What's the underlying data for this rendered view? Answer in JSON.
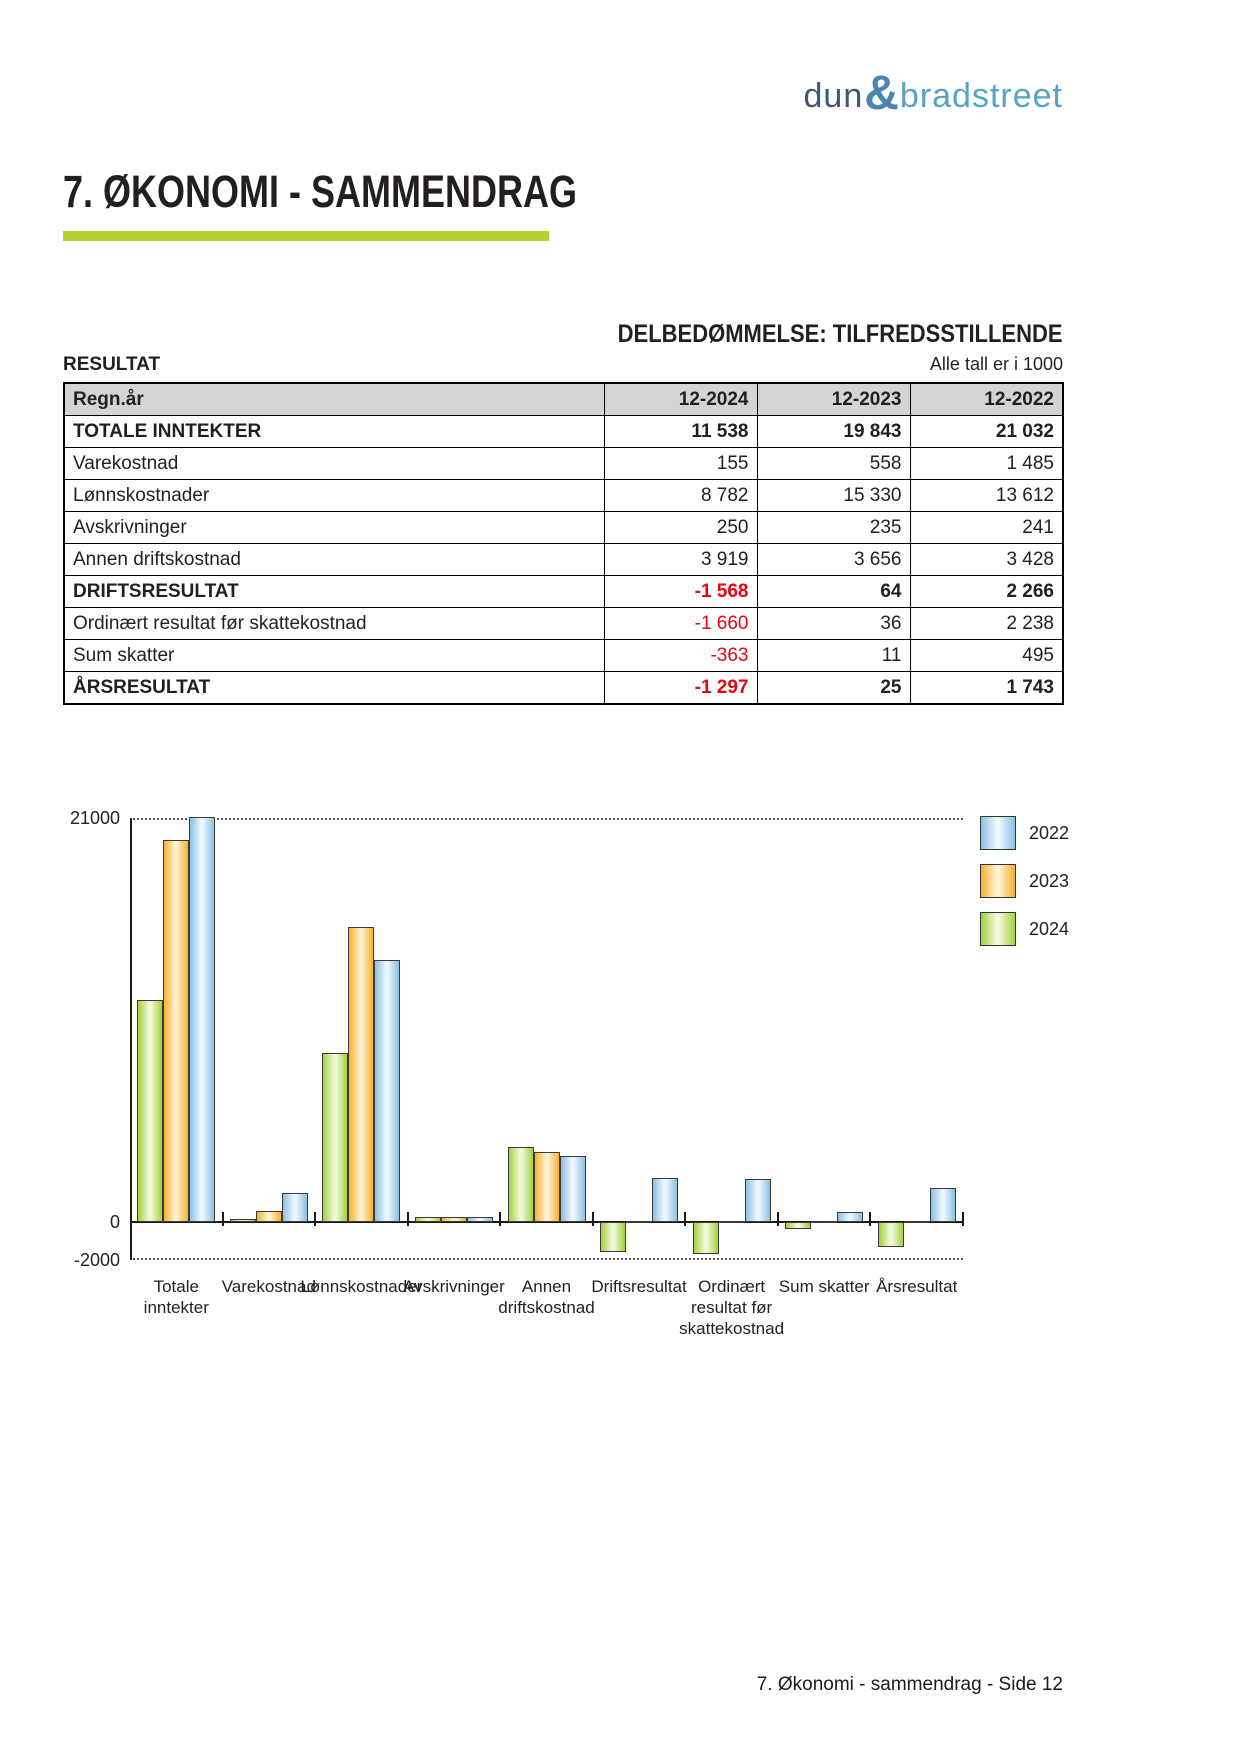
{
  "logo": {
    "part1": "dun",
    "amp": "&",
    "part2": "bradstreet",
    "color_dark": "#3b5a77",
    "color_light": "#56a3c6"
  },
  "page": {
    "title": "7. ØKONOMI - SAMMENDRAG",
    "accent_color": "#b2d234",
    "assessment": "DELBEDØMMELSE: TILFREDSSTILLENDE",
    "section_label": "RESULTAT",
    "units_note": "Alle tall er i 1000",
    "footer": "7. Økonomi - sammendrag - Side 12",
    "negative_color": "#e30613",
    "table_header_bg": "#d4d4d4"
  },
  "table": {
    "headers": [
      "Regn.år",
      "12-2024",
      "12-2023",
      "12-2022"
    ],
    "rows": [
      {
        "label": "TOTALE INNTEKTER",
        "bold": true,
        "values": [
          "11 538",
          "19 843",
          "21 032"
        ]
      },
      {
        "label": "Varekostnad",
        "bold": false,
        "values": [
          "155",
          "558",
          "1 485"
        ]
      },
      {
        "label": "Lønnskostnader",
        "bold": false,
        "values": [
          "8 782",
          "15 330",
          "13 612"
        ]
      },
      {
        "label": "Avskrivninger",
        "bold": false,
        "values": [
          "250",
          "235",
          "241"
        ]
      },
      {
        "label": "Annen driftskostnad",
        "bold": false,
        "values": [
          "3 919",
          "3 656",
          "3 428"
        ]
      },
      {
        "label": "DRIFTSRESULTAT",
        "bold": true,
        "values": [
          "-1 568",
          "64",
          "2 266"
        ]
      },
      {
        "label": "Ordinært resultat før skattekostnad",
        "bold": false,
        "values": [
          "-1 660",
          "36",
          "2 238"
        ]
      },
      {
        "label": "Sum skatter",
        "bold": false,
        "values": [
          "-363",
          "11",
          "495"
        ]
      },
      {
        "label": "ÅRSRESULTAT",
        "bold": true,
        "values": [
          "-1 297",
          "25",
          "1 743"
        ]
      }
    ]
  },
  "chart_data": {
    "type": "bar",
    "categories": [
      "Totale\ninntekter",
      "Varekostnad",
      "Lønnskostnader",
      "Avskrivninger",
      "Annen\ndriftskostnad",
      "Driftsresultat",
      "Ordinært\nresultat før\nskattekostnad",
      "Sum skatter",
      "Årsresultat"
    ],
    "series": [
      {
        "name": "2024",
        "values": [
          11538,
          155,
          8782,
          250,
          3919,
          -1568,
          -1660,
          -363,
          -1297
        ],
        "edge_color": "#a3d03c",
        "center_color": "#eff7d8"
      },
      {
        "name": "2023",
        "values": [
          19843,
          558,
          15330,
          235,
          3656,
          64,
          36,
          11,
          25
        ],
        "edge_color": "#f7b02e",
        "center_color": "#fdf0cf"
      },
      {
        "name": "2022",
        "values": [
          21032,
          1485,
          13612,
          241,
          3428,
          2266,
          2238,
          495,
          1743
        ],
        "edge_color": "#8cc0e0",
        "center_color": "#eaf5fc"
      }
    ],
    "legend_order": [
      "2022",
      "2023",
      "2024"
    ],
    "legend_position": "right",
    "yticks": [
      21000,
      0,
      -2000
    ],
    "ylim": [
      -2000,
      21000
    ],
    "grid": "dotted horizontal lines at 21000 and -2000",
    "title": "",
    "xlabel": "",
    "ylabel": ""
  }
}
